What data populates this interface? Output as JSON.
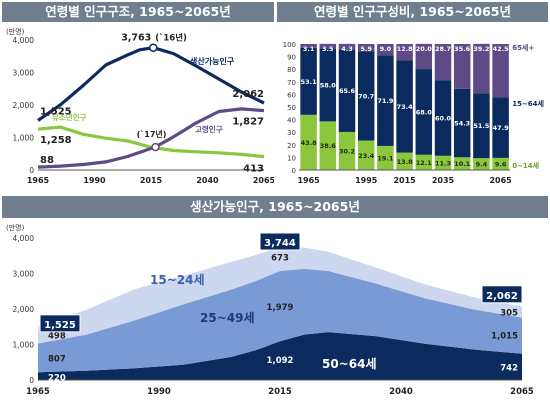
{
  "chart_data": [
    {
      "type": "line",
      "title": "연령별 인구구조, 1965~2065년",
      "yunit": "(만명)",
      "ylim": [
        0,
        4000
      ],
      "yticks": [
        "0",
        "1,000",
        "2,000",
        "3,000",
        "4,000"
      ],
      "xticks": [
        "1965",
        "1990",
        "2015",
        "2040",
        "2065"
      ],
      "xlim": [
        1965,
        2065
      ],
      "series": [
        {
          "name": "생산가능인구",
          "color": "#0b2a5e",
          "x": [
            1965,
            1975,
            1985,
            1995,
            2005,
            2010,
            2016,
            2025,
            2035,
            2045,
            2055,
            2065
          ],
          "y": [
            1525,
            2010,
            2600,
            3230,
            3550,
            3700,
            3763,
            3580,
            3200,
            2800,
            2400,
            2062
          ]
        },
        {
          "name": "유소년인구",
          "color": "#8cc63f",
          "x": [
            1965,
            1975,
            1985,
            1995,
            2005,
            2015,
            2025,
            2035,
            2045,
            2055,
            2065
          ],
          "y": [
            1258,
            1320,
            1100,
            980,
            890,
            700,
            600,
            560,
            530,
            480,
            413
          ]
        },
        {
          "name": "고령인구",
          "color": "#5d4a86",
          "x": [
            1965,
            1975,
            1985,
            1995,
            2005,
            2017,
            2025,
            2035,
            2045,
            2055,
            2065
          ],
          "y": [
            88,
            120,
            170,
            250,
            420,
            710,
            1020,
            1450,
            1800,
            1880,
            1827
          ]
        }
      ],
      "labels": {
        "peak": "3,763",
        "peak_note": "(`16년)",
        "cross_note": "(`17년)",
        "working_start": "1,525",
        "working_end": "2,062",
        "youth_start": "1,258",
        "youth_end": "413",
        "elderly_start": "88",
        "elderly_end": "1,827"
      }
    },
    {
      "type": "bar",
      "stacked": true,
      "title": "연령별 인구구성비, 1965~2065년",
      "ylim": [
        0,
        100
      ],
      "yticks": [
        "0",
        "10",
        "20",
        "30",
        "40",
        "50",
        "60",
        "70",
        "80",
        "90",
        "100"
      ],
      "xticks": [
        "1965",
        "1995",
        "2015",
        "2035",
        "2065"
      ],
      "series": [
        {
          "name": "0~14세",
          "color": "#8cc63f",
          "values": [
            43.8,
            38.6,
            30.2,
            23.4,
            19.1,
            13.8,
            12.1,
            11.3,
            10.1,
            9.4,
            9.6
          ]
        },
        {
          "name": "15~64세",
          "color": "#0b2a5e",
          "values": [
            53.1,
            58.0,
            65.6,
            70.7,
            71.9,
            73.4,
            68.0,
            60.0,
            54.3,
            51.5,
            47.9
          ]
        },
        {
          "name": "65세+",
          "color": "#5d4a86",
          "values": [
            3.1,
            3.5,
            4.3,
            5.9,
            9.0,
            12.8,
            20.0,
            28.7,
            35.6,
            39.2,
            42.5
          ]
        }
      ]
    },
    {
      "type": "area",
      "stacked": true,
      "title": "생산가능인구, 1965~2065년",
      "yunit": "(만명)",
      "ylim": [
        0,
        4000
      ],
      "yticks": [
        "0",
        "1,000",
        "2,000",
        "3,000",
        "4,000"
      ],
      "xticks": [
        "1965",
        "1990",
        "2015",
        "2040",
        "2065"
      ],
      "x": [
        1965,
        1975,
        1985,
        1995,
        2005,
        2010,
        2015,
        2020,
        2025,
        2035,
        2045,
        2055,
        2065
      ],
      "series": [
        {
          "name": "50~64세",
          "color": "#0b2a5e",
          "values": [
            220,
            260,
            330,
            430,
            650,
            840,
            1092,
            1280,
            1350,
            1230,
            1020,
            860,
            742
          ]
        },
        {
          "name": "25~49세",
          "color": "#7a9ad6",
          "values": [
            807,
            1020,
            1350,
            1700,
            1900,
            1950,
            1979,
            1850,
            1720,
            1480,
            1280,
            1130,
            1015
          ]
        },
        {
          "name": "15~24세",
          "color": "#cdd7ef",
          "values": [
            498,
            700,
            880,
            800,
            780,
            730,
            673,
            600,
            540,
            450,
            390,
            340,
            305
          ]
        }
      ],
      "totals": {
        "start": "1,525",
        "peak": "3,744",
        "end": "2,062"
      },
      "value_labels": {
        "y15_start": "498",
        "y15_mid": "673",
        "y15_end": "305",
        "y25_start": "807",
        "y25_mid": "1,979",
        "y25_end": "1,015",
        "y50_start": "220",
        "y50_mid": "1,092",
        "y50_end": "742"
      }
    }
  ]
}
